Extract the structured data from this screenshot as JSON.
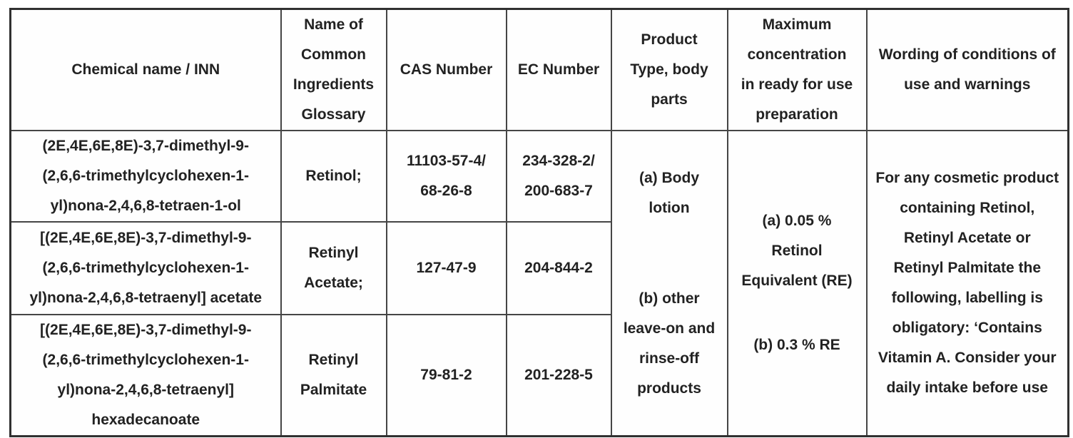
{
  "table": {
    "headers": {
      "chemical_name": "Chemical name / INN",
      "glossary_name": "Name of\nCommon\nIngredients\nGlossary",
      "cas_number": "CAS Number",
      "ec_number": "EC Number",
      "product_type": "Product\nType, body\nparts",
      "max_concentration": "Maximum\nconcentration\nin ready for use\npreparation",
      "wording": "Wording of conditions of\nuse and warnings"
    },
    "rows": [
      {
        "chemical_name": "(2E,4E,6E,8E)-3,7-dimethyl-9-\n(2,6,6-trimethylcyclohexen-1-\nyl)nona-2,4,6,8-tetraen-1-ol",
        "glossary_name": "Retinol;",
        "cas_number": "11103-57-4/\n68-26-8",
        "ec_number": "234-328-2/\n200-683-7"
      },
      {
        "chemical_name": "[(2E,4E,6E,8E)-3,7-dimethyl-9-\n(2,6,6-trimethylcyclohexen-1-\nyl)nona-2,4,6,8-tetraenyl] acetate",
        "glossary_name": "Retinyl\nAcetate;",
        "cas_number": "127-47-9",
        "ec_number": "204-844-2"
      },
      {
        "chemical_name": "[(2E,4E,6E,8E)-3,7-dimethyl-9-\n(2,6,6-trimethylcyclohexen-1-\nyl)nona-2,4,6,8-tetraenyl]\nhexadecanoate",
        "glossary_name": "Retinyl\nPalmitate",
        "cas_number": "79-81-2",
        "ec_number": "201-228-5"
      }
    ],
    "merged": {
      "product_type_a": "(a) Body\nlotion",
      "product_type_b": "(b) other\nleave-on and\nrinse-off\nproducts",
      "max_concentration_a": "(a) 0.05 %\nRetinol\nEquivalent (RE)",
      "max_concentration_b": "(b) 0.3 % RE",
      "wording": "For any cosmetic product\ncontaining Retinol,\nRetinyl Acetate or\nRetinyl Palmitate the\nfollowing, labelling is\nobligatory: ‘Contains\nVitamin A. Consider your\ndaily intake before use"
    }
  }
}
